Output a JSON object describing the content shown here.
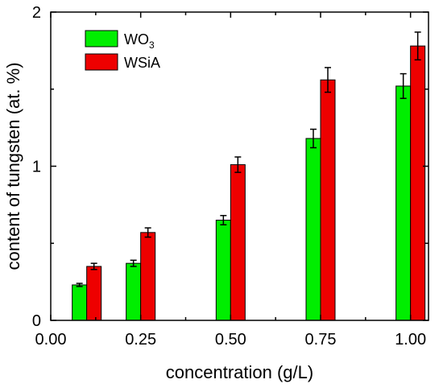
{
  "chart_data": {
    "type": "bar",
    "title": "",
    "xlabel": "concentration (g/L)",
    "ylabel": "content of tungsten (at. %)",
    "xlim": [
      0.0,
      1.05
    ],
    "ylim": [
      0,
      2
    ],
    "x_ticks": [
      0.0,
      0.25,
      0.5,
      0.75,
      1.0
    ],
    "x_tick_labels": [
      "0.00",
      "0.25",
      "0.50",
      "0.75",
      "1.00"
    ],
    "y_ticks": [
      0,
      1,
      2
    ],
    "y_tick_labels": [
      "0",
      "1",
      "2"
    ],
    "x": [
      0.1,
      0.25,
      0.5,
      0.75,
      1.0
    ],
    "series": [
      {
        "name": "WO3",
        "legend_main": "WO",
        "legend_sub": "3",
        "color": "#00ee00",
        "values": [
          0.23,
          0.37,
          0.65,
          1.18,
          1.52
        ],
        "errors": [
          0.01,
          0.02,
          0.03,
          0.06,
          0.08
        ]
      },
      {
        "name": "WSiA",
        "legend_main": "WSiA",
        "legend_sub": "",
        "color": "#ee0000",
        "values": [
          0.35,
          0.57,
          1.01,
          1.56,
          1.78
        ],
        "errors": [
          0.02,
          0.03,
          0.05,
          0.08,
          0.09
        ]
      }
    ],
    "grid": false,
    "legend_position": "top-left"
  }
}
